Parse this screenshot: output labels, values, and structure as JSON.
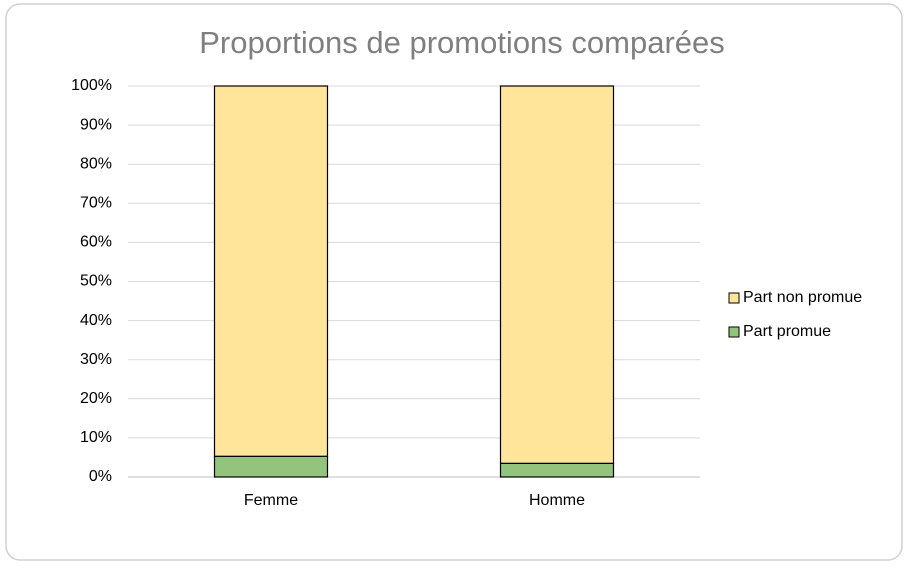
{
  "chart_data": {
    "type": "stacked_bar",
    "title": "Proportions de promotions comparées",
    "categories": [
      "Femme",
      "Homme"
    ],
    "series": [
      {
        "name": "Part promue",
        "color": "#93c47d",
        "values": [
          5.3,
          3.5
        ]
      },
      {
        "name": "Part non promue",
        "color": "#ffe599",
        "values": [
          94.7,
          96.5
        ]
      }
    ],
    "ylim": [
      0,
      100
    ],
    "yticks": [
      {
        "value": 0,
        "label": "0%"
      },
      {
        "value": 10,
        "label": "10%"
      },
      {
        "value": 20,
        "label": "20%"
      },
      {
        "value": 30,
        "label": "30%"
      },
      {
        "value": 40,
        "label": "40%"
      },
      {
        "value": 50,
        "label": "50%"
      },
      {
        "value": 60,
        "label": "60%"
      },
      {
        "value": 70,
        "label": "70%"
      },
      {
        "value": 80,
        "label": "80%"
      },
      {
        "value": 90,
        "label": "90%"
      },
      {
        "value": 100,
        "label": "100%"
      }
    ],
    "grid": true,
    "legend": "right"
  }
}
